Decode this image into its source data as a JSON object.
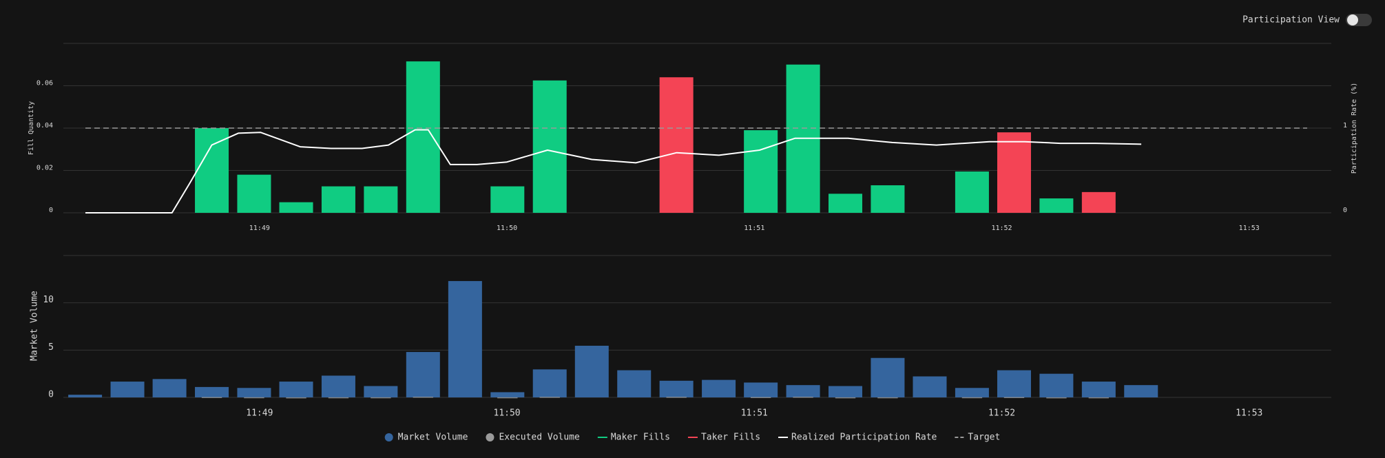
{
  "controls": {
    "toggle_label": "Participation View"
  },
  "chart_data": [
    {
      "type": "bar",
      "ylabel": "Fill Quantity",
      "y2label": "Participation Rate (%)",
      "xlim": [
        708.207,
        713.332
      ],
      "xticks": [
        {
          "value": 709,
          "label": "11:49"
        },
        {
          "value": 710,
          "label": "11:50"
        },
        {
          "value": 711,
          "label": "11:51"
        },
        {
          "value": 712,
          "label": "11:52"
        },
        {
          "value": 713,
          "label": "11:53"
        }
      ],
      "ylim": [
        0,
        0.08
      ],
      "yticks": [
        0,
        0.02,
        0.04,
        0.06
      ],
      "y2lim": [
        0,
        2
      ],
      "y2ticks": [
        0,
        1
      ],
      "grid": true,
      "series": [
        {
          "name": "Maker Fills",
          "type": "bar",
          "color": "#10cc82",
          "x": [
            708.807,
            708.978,
            709.148,
            709.319,
            709.49,
            709.661,
            710.002,
            710.173,
            711.026,
            711.197,
            711.368,
            711.539,
            711.88,
            712.221
          ],
          "values": [
            0.04,
            0.018,
            0.005,
            0.0125,
            0.0125,
            0.0715,
            0.0125,
            0.0625,
            0.039,
            0.07,
            0.009,
            0.013,
            0.0195,
            0.0068
          ]
        },
        {
          "name": "Taker Fills",
          "type": "bar",
          "color": "#f44455",
          "x": [
            710.685,
            712.05,
            712.392
          ],
          "values": [
            0.064,
            0.038,
            0.0098
          ]
        },
        {
          "name": "Realized Participation Rate",
          "type": "line",
          "axis": "y2",
          "color": "#ffffff",
          "x": [
            708.296,
            708.486,
            708.646,
            708.718,
            708.807,
            708.914,
            709.004,
            709.164,
            709.289,
            709.414,
            709.521,
            709.629,
            709.682,
            709.771,
            709.879,
            710.0,
            710.164,
            710.343,
            710.521,
            710.686,
            710.857,
            711.021,
            711.164,
            711.379,
            711.557,
            711.736,
            711.95,
            712.093,
            712.236,
            712.379,
            712.564
          ],
          "values": [
            0,
            0,
            0,
            0.35,
            0.8,
            0.94,
            0.95,
            0.78,
            0.76,
            0.76,
            0.8,
            0.98,
            0.98,
            0.57,
            0.57,
            0.6,
            0.74,
            0.63,
            0.59,
            0.71,
            0.68,
            0.74,
            0.88,
            0.88,
            0.83,
            0.8,
            0.84,
            0.84,
            0.82,
            0.82,
            0.81
          ]
        }
      ],
      "target": {
        "name": "Target",
        "value": 1,
        "axis": "y2",
        "color": "#9a9a9a"
      }
    },
    {
      "type": "bar",
      "ylabel": "Market Volume",
      "xlim": [
        708.207,
        713.332
      ],
      "xticks": [
        {
          "value": 709,
          "label": "11:49"
        },
        {
          "value": 710,
          "label": "11:50"
        },
        {
          "value": 711,
          "label": "11:51"
        },
        {
          "value": 712,
          "label": "11:52"
        },
        {
          "value": 713,
          "label": "11:53"
        }
      ],
      "ylim": [
        0,
        15
      ],
      "yticks": [
        0,
        5,
        10
      ],
      "grid": true,
      "series": [
        {
          "name": "Market Volume",
          "type": "bar",
          "color": "#35659e",
          "x": [
            708.295,
            708.466,
            708.636,
            708.807,
            708.978,
            709.148,
            709.319,
            709.49,
            709.661,
            709.831,
            710.002,
            710.173,
            710.343,
            710.514,
            710.685,
            710.856,
            711.026,
            711.197,
            711.368,
            711.539,
            711.709,
            711.88,
            712.05,
            712.221,
            712.392,
            712.563
          ],
          "values": [
            0.28,
            1.67,
            1.94,
            1.1,
            1.0,
            1.67,
            2.3,
            1.2,
            4.8,
            12.3,
            0.55,
            2.96,
            5.46,
            2.87,
            1.76,
            1.85,
            1.57,
            1.3,
            1.2,
            4.17,
            2.22,
            1.0,
            2.87,
            2.5,
            1.67,
            1.3
          ]
        },
        {
          "name": "Executed Volume",
          "type": "bar",
          "color": "#9a9a9a",
          "x": [
            708.295,
            708.466,
            708.636,
            708.807,
            708.978,
            709.148,
            709.319,
            709.49,
            709.661,
            709.831,
            710.002,
            710.173,
            710.343,
            710.514,
            710.685,
            710.856,
            711.026,
            711.197,
            711.368,
            711.539,
            711.709,
            711.88,
            712.05,
            712.221,
            712.392,
            712.563
          ],
          "values": [
            null,
            null,
            null,
            0.04,
            0.018,
            0.005,
            0.0125,
            0.0125,
            0.0715,
            null,
            0.0125,
            0.0625,
            null,
            null,
            0.064,
            null,
            0.039,
            0.07,
            0.009,
            0.013,
            null,
            0.0195,
            0.038,
            0.0068,
            0.0098,
            null
          ]
        }
      ]
    }
  ]
}
